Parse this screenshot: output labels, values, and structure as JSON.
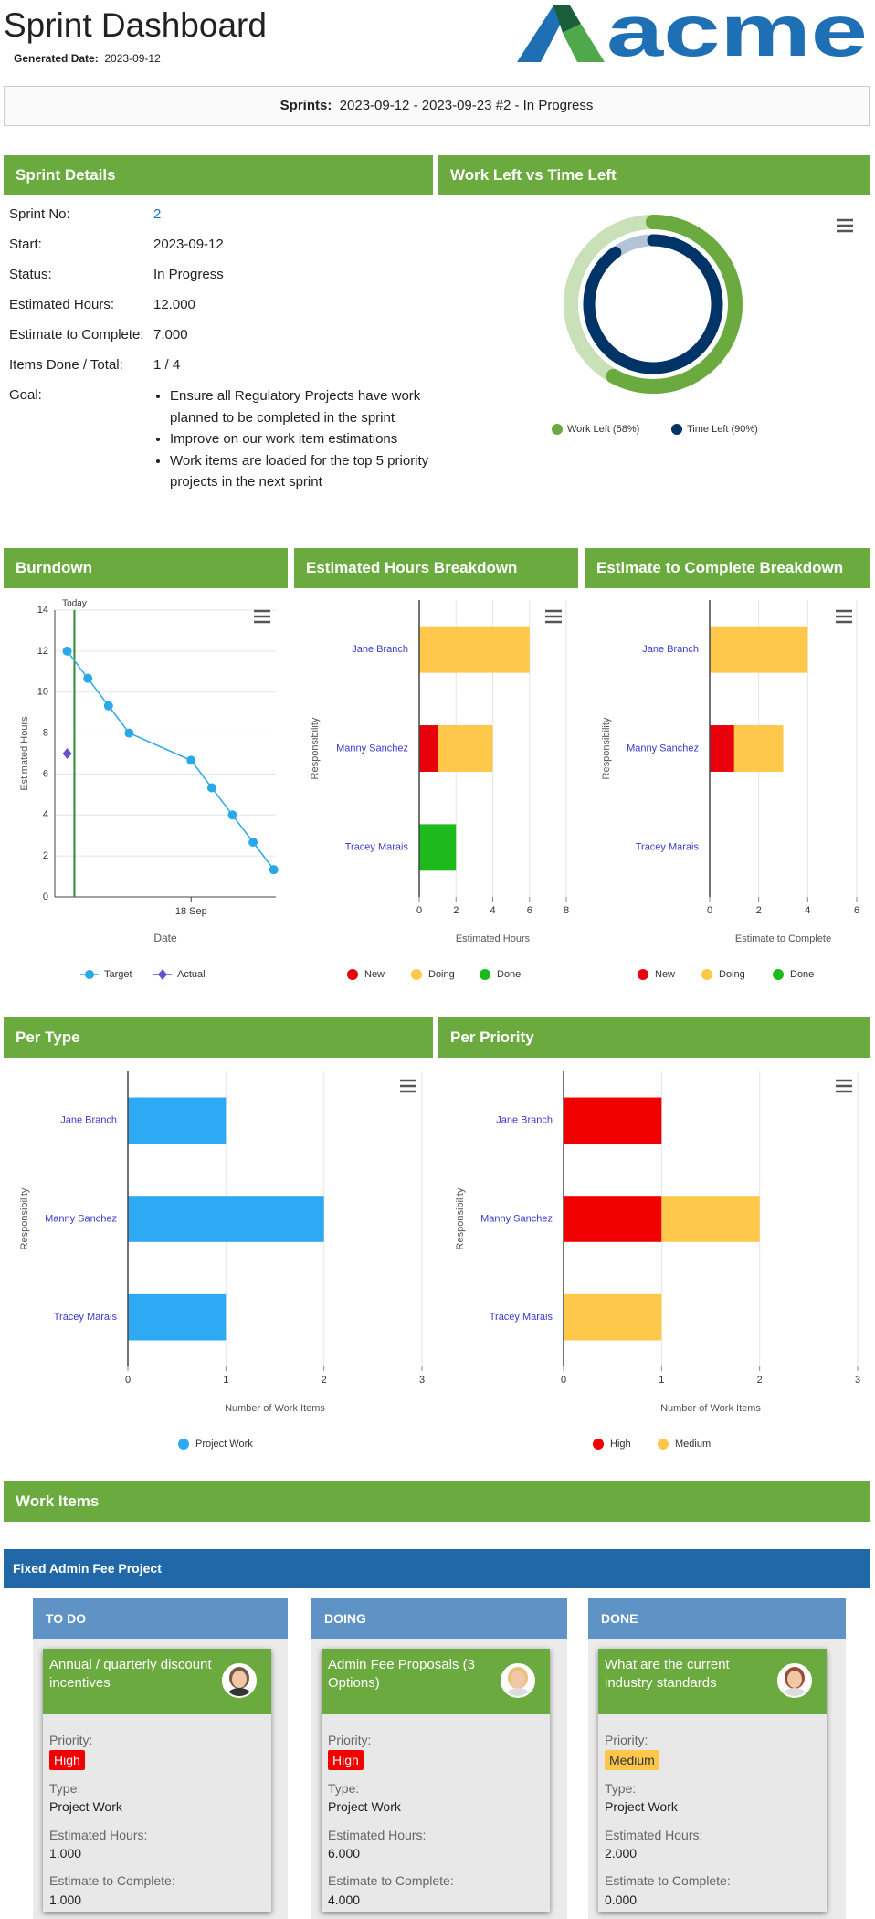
{
  "header": {
    "title": "Sprint Dashboard",
    "generated_label": "Generated Date:",
    "generated_date": "2023-09-12",
    "logo": "acme"
  },
  "sprint_bar": {
    "label": "Sprints:",
    "value": "2023-09-12 - 2023-09-23 #2 - In Progress"
  },
  "sprint_details": {
    "title": "Sprint Details",
    "rows": [
      [
        "Sprint No:",
        "2"
      ],
      [
        "Start:",
        "2023-09-12"
      ],
      [
        "Status:",
        "In Progress"
      ],
      [
        "Estimated Hours:",
        "12.000"
      ],
      [
        "Estimate to Complete:",
        "7.000"
      ],
      [
        "Items Done / Total:",
        "1 / 4"
      ]
    ],
    "goal_label": "Goal:",
    "goals": [
      "Ensure all Regulatory Projects have work planned to be completed in the sprint",
      "Improve on our work item estimations",
      "Work items are loaded for the top 5 priority projects in the next sprint"
    ]
  },
  "chart_data": [
    {
      "type": "donut",
      "title": "Work Left vs Time Left",
      "ylim": [
        0,
        100
      ],
      "series": [
        {
          "name": "Work Left (58%)",
          "value": 58,
          "color": "#6aaa3f",
          "track": "#c9e0b9"
        },
        {
          "name": "Time Left (90%)",
          "value": 90,
          "color": "#003366",
          "track": "#b4c4d8"
        }
      ]
    },
    {
      "type": "line",
      "title": "Burndown",
      "x_label": "Date",
      "y_label": "Estimated Hours",
      "xlim": [
        11.4,
        22.1
      ],
      "xticks": [
        {
          "value": 18,
          "label": "18 Sep"
        }
      ],
      "ylim": [
        0,
        14
      ],
      "yticks": [
        0,
        2,
        4,
        6,
        8,
        10,
        12,
        14
      ],
      "grid": true,
      "today": {
        "value": 12.35,
        "label": "Today",
        "color": "#2e8b2e"
      },
      "series": [
        {
          "name": "Target",
          "color": "#2ba8e8",
          "marker": "circle",
          "x": [
            12,
            13,
            14,
            15,
            18,
            19,
            20,
            21,
            22
          ],
          "values": [
            12,
            10.67,
            9.33,
            8,
            6.67,
            5.33,
            4,
            2.67,
            1.33
          ]
        },
        {
          "name": "Actual",
          "color": "#6a4fcf",
          "marker": "diamond",
          "x": [
            12
          ],
          "values": [
            7
          ]
        }
      ]
    },
    {
      "type": "bar",
      "orientation": "horizontal",
      "stacked": true,
      "title": "Estimated Hours Breakdown",
      "categories": [
        "Jane Branch",
        "Manny Sanchez",
        "Tracey Marais"
      ],
      "x_label": "Estimated Hours",
      "y_label": "Responsibility",
      "xlim": [
        0,
        8
      ],
      "xticks": [
        0,
        2,
        4,
        6,
        8
      ],
      "grid": true,
      "series": [
        {
          "name": "New",
          "color": "#e8000b",
          "values": [
            0,
            1,
            0
          ]
        },
        {
          "name": "Doing",
          "color": "#ffc84a",
          "values": [
            6,
            3,
            0
          ]
        },
        {
          "name": "Done",
          "color": "#1db91d",
          "values": [
            0,
            0,
            2
          ]
        }
      ]
    },
    {
      "type": "bar",
      "orientation": "horizontal",
      "stacked": true,
      "title": "Estimate to Complete Breakdown",
      "categories": [
        "Jane Branch",
        "Manny Sanchez",
        "Tracey Marais"
      ],
      "x_label": "Estimate to Complete",
      "y_label": "Responsibility",
      "xlim": [
        0,
        6
      ],
      "xticks": [
        0,
        2,
        4,
        6
      ],
      "grid": true,
      "series": [
        {
          "name": "New",
          "color": "#e8000b",
          "values": [
            0,
            1,
            0
          ]
        },
        {
          "name": "Doing",
          "color": "#ffc84a",
          "values": [
            4,
            2,
            0
          ]
        },
        {
          "name": "Done",
          "color": "#1db91d",
          "values": [
            0,
            0,
            0
          ]
        }
      ]
    },
    {
      "type": "bar",
      "orientation": "horizontal",
      "stacked": true,
      "title": "Per Type",
      "categories": [
        "Jane Branch",
        "Manny Sanchez",
        "Tracey Marais"
      ],
      "x_label": "Number of Work Items",
      "y_label": "Responsibility",
      "xlim": [
        0,
        3
      ],
      "xticks": [
        0,
        1,
        2,
        3
      ],
      "grid": true,
      "series": [
        {
          "name": "Project Work",
          "color": "#2eaaf5",
          "values": [
            1,
            2,
            1
          ]
        }
      ]
    },
    {
      "type": "bar",
      "orientation": "horizontal",
      "stacked": true,
      "title": "Per Priority",
      "categories": [
        "Jane Branch",
        "Manny Sanchez",
        "Tracey Marais"
      ],
      "x_label": "Number of Work Items",
      "y_label": "Responsibility",
      "xlim": [
        0,
        3
      ],
      "xticks": [
        0,
        1,
        2,
        3
      ],
      "grid": true,
      "series": [
        {
          "name": "High",
          "color": "#f00000",
          "values": [
            1,
            1,
            0
          ]
        },
        {
          "name": "Medium",
          "color": "#ffc84a",
          "values": [
            0,
            1,
            1
          ]
        }
      ]
    }
  ],
  "work_items": {
    "title": "Work Items",
    "project": "Fixed Admin Fee Project",
    "columns": [
      {
        "name": "TO DO",
        "cards": [
          {
            "title": "Annual / quarterly discount incentives",
            "priority_label": "Priority:",
            "priority": "High",
            "priority_color": "#f00000",
            "type_label": "Type:",
            "type": "Project Work",
            "est_label": "Estimated Hours:",
            "est": "1.000",
            "etc_label": "Estimate to Complete:",
            "etc": "1.000"
          }
        ]
      },
      {
        "name": "DOING",
        "cards": [
          {
            "title": "Admin Fee Proposals (3 Options)",
            "priority_label": "Priority:",
            "priority": "High",
            "priority_color": "#f00000",
            "type_label": "Type:",
            "type": "Project Work",
            "est_label": "Estimated Hours:",
            "est": "6.000",
            "etc_label": "Estimate to Complete:",
            "etc": "4.000"
          }
        ]
      },
      {
        "name": "DONE",
        "cards": [
          {
            "title": "What are the current industry standards",
            "priority_label": "Priority:",
            "priority": "Medium",
            "priority_color": "#ffc84a",
            "type_label": "Type:",
            "type": "Project Work",
            "est_label": "Estimated Hours:",
            "est": "2.000",
            "etc_label": "Estimate to Complete:",
            "etc": "0.000"
          }
        ]
      }
    ]
  }
}
